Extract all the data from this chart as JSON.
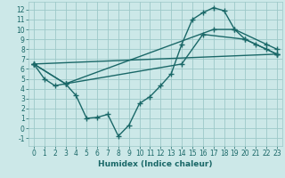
{
  "bg_color": "#cce8e8",
  "grid_color": "#9dc8c8",
  "line_color": "#1a6868",
  "line_width": 1.0,
  "marker": "+",
  "marker_size": 4,
  "marker_ew": 1.0,
  "xlabel": "Humidex (Indice chaleur)",
  "xlabel_fontsize": 6.5,
  "tick_fontsize": 5.5,
  "xlim": [
    -0.5,
    23.5
  ],
  "ylim": [
    -1.8,
    12.8
  ],
  "xticks": [
    0,
    1,
    2,
    3,
    4,
    5,
    6,
    7,
    8,
    9,
    10,
    11,
    12,
    13,
    14,
    15,
    16,
    17,
    18,
    19,
    20,
    21,
    22,
    23
  ],
  "yticks": [
    -1,
    0,
    1,
    2,
    3,
    4,
    5,
    6,
    7,
    8,
    9,
    10,
    11,
    12
  ],
  "lines": [
    {
      "x": [
        0,
        1,
        2,
        3,
        4,
        5,
        6,
        7,
        8,
        9,
        10,
        11,
        12,
        13,
        14,
        15,
        16,
        17,
        18,
        19,
        20,
        21,
        22,
        23
      ],
      "y": [
        6.5,
        5.0,
        4.3,
        4.5,
        3.3,
        1.0,
        1.1,
        1.4,
        -0.8,
        0.3,
        2.5,
        3.2,
        4.3,
        5.5,
        8.5,
        11.0,
        11.7,
        12.2,
        11.9,
        10.0,
        9.0,
        8.5,
        8.0,
        7.5
      ]
    },
    {
      "x": [
        0,
        23
      ],
      "y": [
        6.5,
        7.5
      ]
    },
    {
      "x": [
        0,
        3,
        17,
        19,
        22,
        23
      ],
      "y": [
        6.5,
        4.5,
        10.0,
        10.0,
        8.5,
        8.0
      ]
    },
    {
      "x": [
        0,
        3,
        14,
        16,
        20,
        23
      ],
      "y": [
        6.5,
        4.5,
        6.5,
        9.5,
        9.0,
        7.5
      ]
    }
  ]
}
